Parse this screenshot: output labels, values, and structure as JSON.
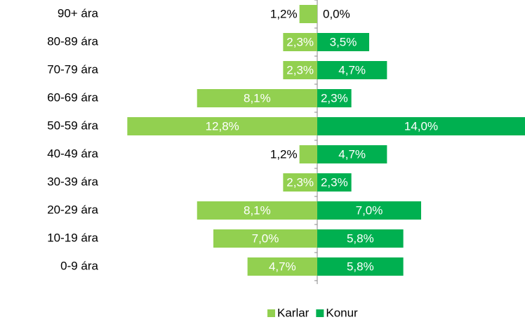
{
  "chart_data": {
    "type": "pyramid",
    "categories": [
      "90+ ára",
      "80-89 ára",
      "70-79 ára",
      "60-69 ára",
      "50-59 ára",
      "40-49 ára",
      "30-39 ára",
      "20-29 ára",
      "10-19 ára",
      "0-9 ára"
    ],
    "series": [
      {
        "name": "Karlar",
        "color": "#92d050",
        "values": [
          1.2,
          2.3,
          2.3,
          8.1,
          12.8,
          1.2,
          2.3,
          8.1,
          7.0,
          4.7
        ],
        "value_labels": [
          "1,2%",
          "2,3%",
          "2,3%",
          "8,1%",
          "12,8%",
          "1,2%",
          "2,3%",
          "8,1%",
          "7,0%",
          "4,7%"
        ]
      },
      {
        "name": "Konur",
        "color": "#00b050",
        "values": [
          0.0,
          3.5,
          4.7,
          2.3,
          14.0,
          4.7,
          2.3,
          7.0,
          5.8,
          5.8
        ],
        "value_labels": [
          "0,0%",
          "3,5%",
          "4,7%",
          "2,3%",
          "14,0%",
          "4,7%",
          "2,3%",
          "7,0%",
          "5,8%",
          "5,8%"
        ]
      }
    ]
  }
}
